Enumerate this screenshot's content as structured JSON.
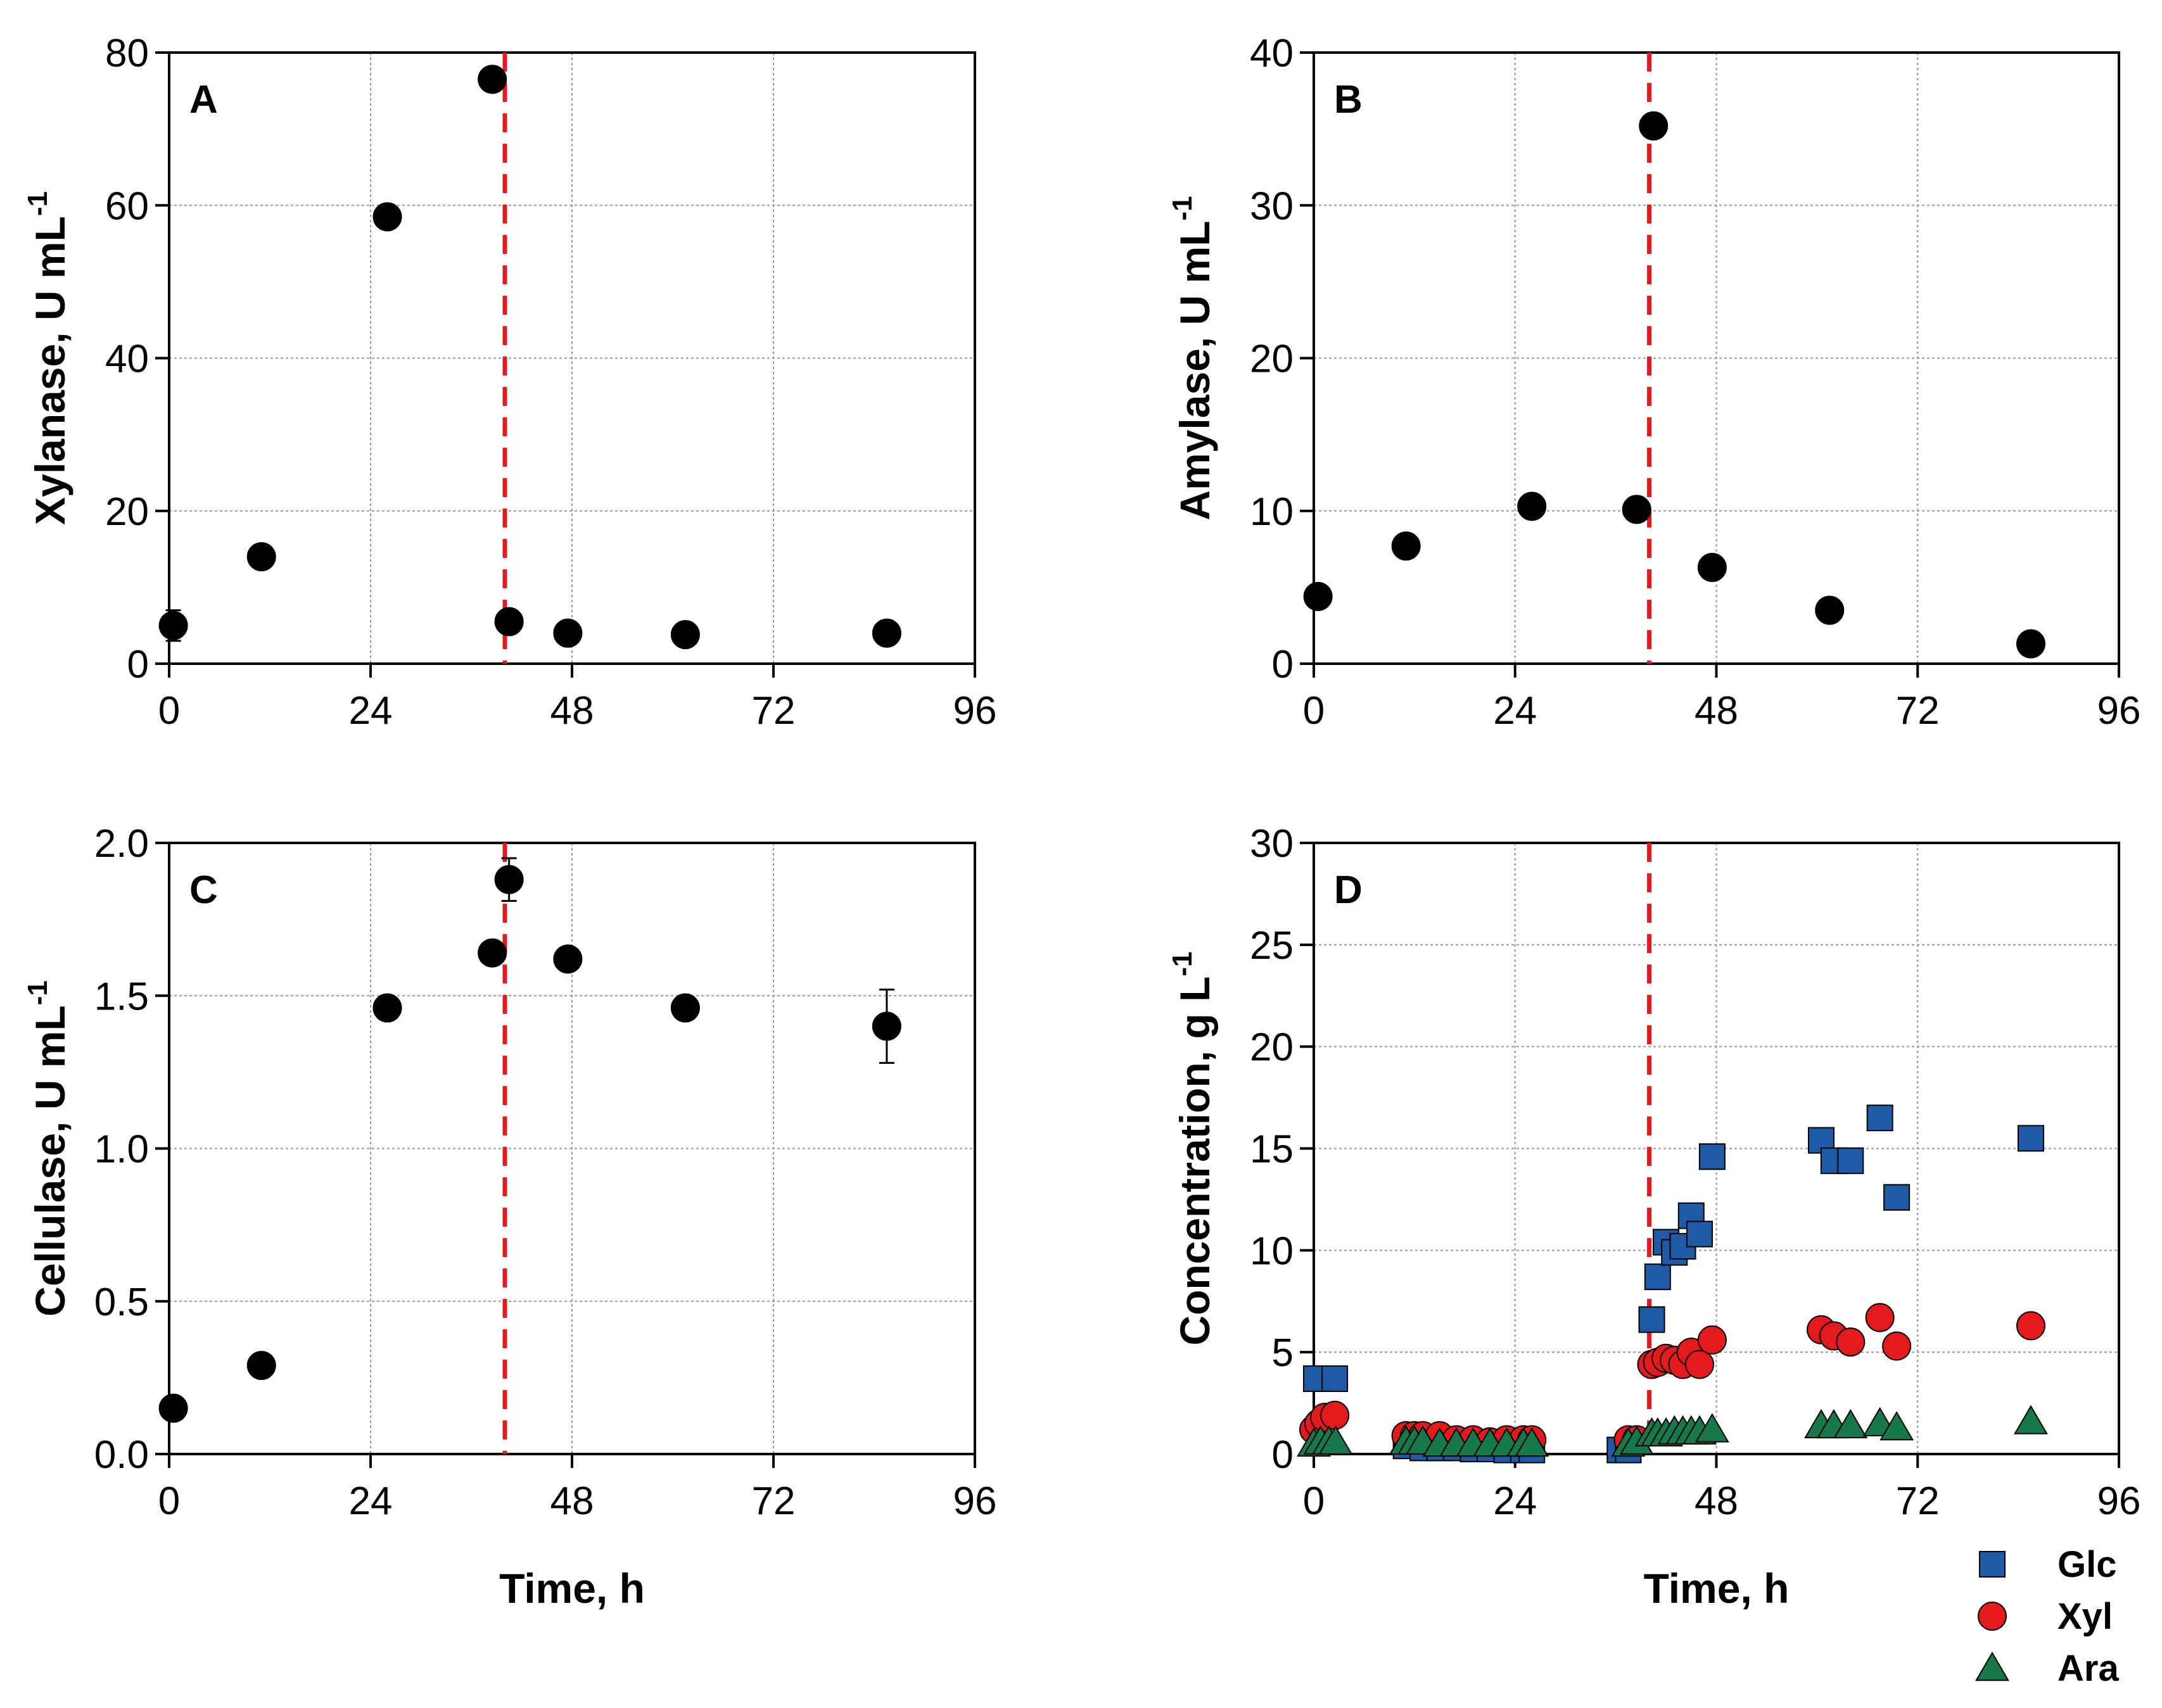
{
  "colors": {
    "marker": "#000000",
    "glc": "#1f5aa6",
    "xyl": "#e41a1c",
    "ara": "#17784a",
    "grid": "#9a9a9a",
    "vline": "#e41a1c"
  },
  "chart_data": [
    {
      "id": "A",
      "type": "scatter",
      "panel_label": "A",
      "xlabel": "",
      "ylabel": "Xylanase, U mL",
      "ylabel_sup": "-1",
      "xlim": [
        0,
        96
      ],
      "ylim": [
        0,
        80
      ],
      "xticks": [
        0,
        24,
        48,
        72,
        96
      ],
      "yticks": [
        0,
        20,
        40,
        60,
        80
      ],
      "ytick_labels": [
        "0",
        "20",
        "40",
        "60",
        "80"
      ],
      "vline_x": 40,
      "series": [
        {
          "name": "Xylanase",
          "marker": "circle",
          "x": [
            0.5,
            11,
            26,
            38.5,
            40.5,
            47.5,
            61.5,
            85.5
          ],
          "y": [
            5,
            14,
            58.5,
            76.5,
            5.5,
            4,
            3.8,
            4
          ],
          "err": [
            2,
            0,
            0,
            0,
            0,
            0,
            0,
            0
          ]
        }
      ]
    },
    {
      "id": "B",
      "type": "scatter",
      "panel_label": "B",
      "xlabel": "",
      "ylabel": "Amylase, U mL",
      "ylabel_sup": "-1",
      "xlim": [
        0,
        96
      ],
      "ylim": [
        0,
        40
      ],
      "xticks": [
        0,
        24,
        48,
        72,
        96
      ],
      "yticks": [
        0,
        10,
        20,
        30,
        40
      ],
      "ytick_labels": [
        "0",
        "10",
        "20",
        "30",
        "40"
      ],
      "vline_x": 40,
      "series": [
        {
          "name": "Amylase",
          "marker": "circle",
          "x": [
            0.5,
            11,
            26,
            38.5,
            40.5,
            47.5,
            61.5,
            85.5
          ],
          "y": [
            4.4,
            7.7,
            10.3,
            10.1,
            35.2,
            6.3,
            3.5,
            1.3
          ],
          "err": [
            0,
            0,
            0,
            0,
            0,
            0,
            0,
            0
          ]
        }
      ]
    },
    {
      "id": "C",
      "type": "scatter",
      "panel_label": "C",
      "xlabel": "Time, h",
      "ylabel": "Cellulase, U mL",
      "ylabel_sup": "-1",
      "xlim": [
        0,
        96
      ],
      "ylim": [
        0,
        2.0
      ],
      "xticks": [
        0,
        24,
        48,
        72,
        96
      ],
      "yticks": [
        0,
        0.5,
        1.0,
        1.5,
        2.0
      ],
      "ytick_labels": [
        "0.0",
        "0.5",
        "1.0",
        "1.5",
        "2.0"
      ],
      "vline_x": 40,
      "series": [
        {
          "name": "Cellulase",
          "marker": "circle",
          "x": [
            0.5,
            11,
            26,
            38.5,
            40.5,
            47.5,
            61.5,
            85.5
          ],
          "y": [
            0.15,
            0.29,
            1.46,
            1.64,
            1.88,
            1.62,
            1.46,
            1.4
          ],
          "err": [
            0,
            0,
            0,
            0,
            0.07,
            0,
            0,
            0.12
          ]
        }
      ]
    },
    {
      "id": "D",
      "type": "scatter",
      "panel_label": "D",
      "xlabel": "Time, h",
      "ylabel": "Concentration, g L",
      "ylabel_sup": "-1",
      "xlim": [
        0,
        96
      ],
      "ylim": [
        0,
        30
      ],
      "xticks": [
        0,
        24,
        48,
        72,
        96
      ],
      "yticks": [
        0,
        5,
        10,
        15,
        20,
        25,
        30
      ],
      "ytick_labels": [
        "0",
        "5",
        "10",
        "15",
        "20",
        "25",
        "30"
      ],
      "vline_x": 40,
      "legend_position": "bottom-right",
      "series": [
        {
          "name": "Glc",
          "marker": "square",
          "x": [
            0.3,
            2.5,
            11,
            13,
            15,
            17,
            19,
            21,
            23,
            25,
            26,
            36.5,
            37.5,
            40.3,
            41,
            42,
            43,
            44,
            45,
            46,
            47.5,
            60.5,
            62,
            64,
            67.5,
            69.5,
            85.5
          ],
          "y": [
            3.7,
            3.7,
            0.4,
            0.3,
            0.3,
            0.3,
            0.25,
            0.25,
            0.2,
            0.2,
            0.2,
            0.2,
            0.2,
            6.6,
            8.7,
            10.4,
            9.9,
            10.2,
            11.7,
            10.8,
            14.6,
            15.4,
            14.4,
            14.4,
            16.5,
            12.6,
            15.5
          ]
        },
        {
          "name": "Xyl",
          "marker": "circle",
          "x": [
            0,
            0.6,
            1.3,
            2.5,
            11,
            12,
            13,
            15,
            17,
            19,
            21,
            23,
            25,
            26,
            37.5,
            38.5,
            40.3,
            41,
            42,
            43,
            44,
            45,
            46,
            47.5,
            60.5,
            62,
            64,
            67.5,
            69.5,
            85.5
          ],
          "y": [
            1.2,
            1.5,
            1.8,
            1.9,
            0.9,
            0.9,
            0.9,
            0.9,
            0.7,
            0.7,
            0.6,
            0.7,
            0.7,
            0.7,
            0.7,
            0.7,
            4.4,
            4.5,
            4.7,
            4.6,
            4.4,
            5.0,
            4.4,
            5.6,
            6.1,
            5.8,
            5.5,
            6.7,
            5.3,
            6.3
          ]
        },
        {
          "name": "Ara",
          "marker": "triangle",
          "x": [
            0,
            0.8,
            1.8,
            2.6,
            11,
            12,
            13,
            15,
            17,
            19,
            21,
            23,
            25,
            26,
            37.5,
            38.5,
            40.3,
            41,
            42,
            43,
            44,
            45,
            46,
            47.5,
            60.5,
            62,
            64,
            67.5,
            69.5,
            85.5
          ],
          "y": [
            0.5,
            0.6,
            0.6,
            0.6,
            0.6,
            0.6,
            0.6,
            0.5,
            0.5,
            0.5,
            0.5,
            0.5,
            0.5,
            0.5,
            0.5,
            0.6,
            1.0,
            1.0,
            1.0,
            1.1,
            1.1,
            1.1,
            1.1,
            1.2,
            1.4,
            1.4,
            1.4,
            1.5,
            1.3,
            1.6
          ]
        }
      ]
    }
  ]
}
